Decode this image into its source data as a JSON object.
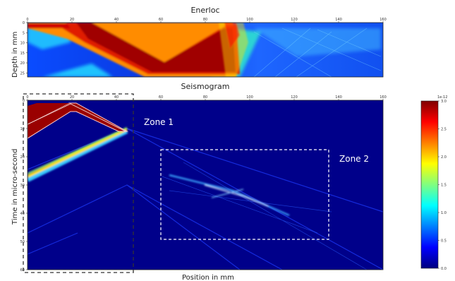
{
  "chart_data": [
    {
      "type": "heatmap",
      "title": "Enerloc",
      "xlabel": "",
      "ylabel": "Depth in mm",
      "x_ticks": [
        "0",
        "20",
        "40",
        "60",
        "80",
        "100",
        "120",
        "140",
        "160"
      ],
      "y_ticks": [
        "0",
        "5",
        "10",
        "15",
        "20",
        "25"
      ],
      "xlim": [
        0,
        160
      ],
      "ylim": [
        0,
        27
      ]
    },
    {
      "type": "heatmap",
      "title": "Seismogram",
      "xlabel": "Position in mm",
      "ylabel": "Time in micro-second",
      "x_ticks": [
        "0",
        "20",
        "40",
        "60",
        "80",
        "100",
        "120",
        "140",
        "160"
      ],
      "y_ticks": [
        "0",
        "10",
        "20",
        "30",
        "40",
        "50",
        "60"
      ],
      "xlim": [
        0,
        160
      ],
      "ylim": [
        0,
        60
      ],
      "annotations": [
        {
          "label": "Zone 1",
          "x_range": [
            0,
            48
          ],
          "y_range": [
            0,
            60
          ]
        },
        {
          "label": "Zone 2",
          "x_range": [
            60,
            136
          ],
          "y_range": [
            17,
            49
          ]
        }
      ]
    }
  ],
  "colorbar": {
    "exponent": "1e-12",
    "ticks": [
      "0.0",
      "0.5",
      "1.0",
      "1.5",
      "2.0",
      "2.5",
      "3.0"
    ],
    "range": [
      0,
      3
    ],
    "colormap": "jet"
  }
}
